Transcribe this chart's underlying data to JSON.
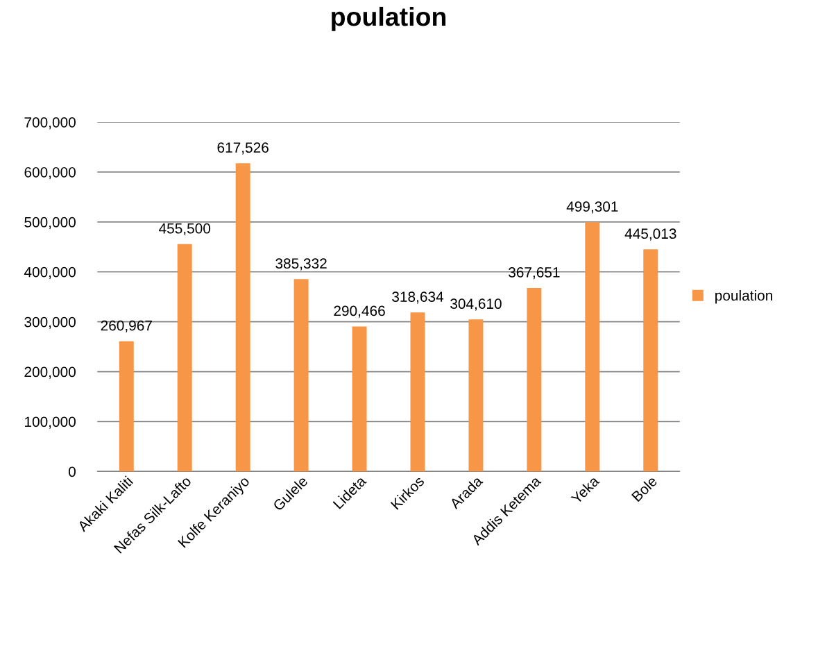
{
  "chart_data": {
    "type": "bar",
    "title": "poulation",
    "categories": [
      "Akaki Kaliti",
      "Nefas Silk-Lafto",
      "Kolfe Keraniyo",
      "Gulele",
      "Lideta",
      "Kirkos",
      "Arada",
      "Addis Ketema",
      "Yeka",
      "Bole"
    ],
    "series": [
      {
        "name": "poulation",
        "color": "#f79646",
        "values": [
          260967,
          455500,
          617526,
          385332,
          290466,
          318634,
          304610,
          367651,
          499301,
          445013
        ]
      }
    ],
    "value_labels": [
      "260,967",
      "455,500",
      "617,526",
      "385,332",
      "290,466",
      "318,634",
      "304,610",
      "367,651",
      "499,301",
      "445,013"
    ],
    "ylim": [
      0,
      700000
    ],
    "yticks": [
      0,
      {
        "value": 100000,
        "label": "100,000"
      },
      {
        "value": 200000,
        "label": "200,000"
      },
      {
        "value": 300000,
        "label": "300,000"
      },
      {
        "value": 400000,
        "label": "400,000"
      },
      {
        "value": 500000,
        "label": "500,000"
      },
      {
        "value": 600000,
        "label": "600,000"
      },
      {
        "value": 700000,
        "label": "700,000"
      }
    ],
    "grid": "y",
    "legend": "right"
  }
}
